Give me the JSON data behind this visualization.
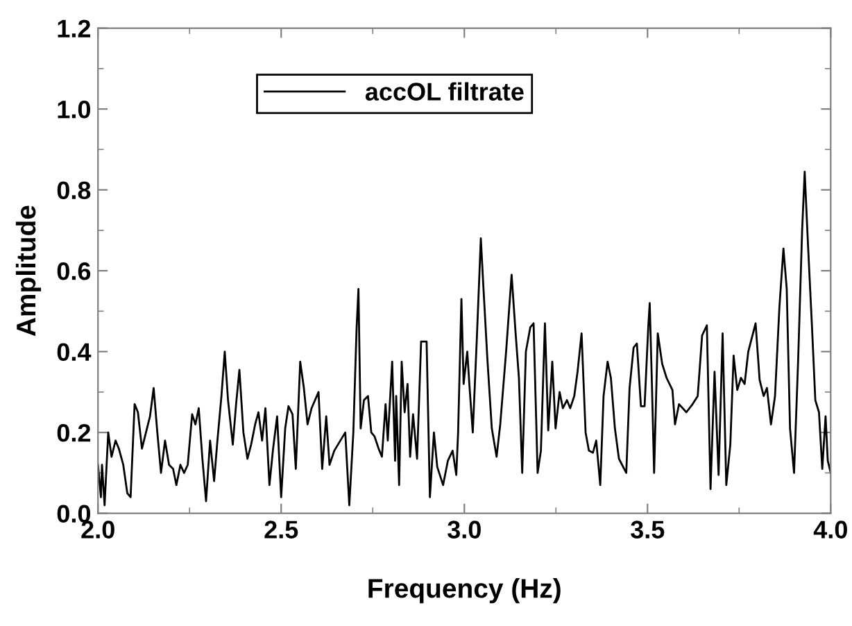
{
  "chart_data": {
    "type": "line",
    "xlabel": "Frequency (Hz)",
    "ylabel": "Amplitude",
    "xlim": [
      2.0,
      4.0
    ],
    "xticks": [
      {
        "value": 2.0,
        "label": "2.0"
      },
      {
        "value": 2.5,
        "label": "2.5"
      },
      {
        "value": 3.0,
        "label": "3.0"
      },
      {
        "value": 3.5,
        "label": "3.5"
      },
      {
        "value": 4.0,
        "label": "4.0"
      }
    ],
    "ylim": [
      0.0,
      1.2
    ],
    "yticks": [
      {
        "value": 0.0,
        "label": "0.0"
      },
      {
        "value": 0.2,
        "label": "0.2"
      },
      {
        "value": 0.4,
        "label": "0.4"
      },
      {
        "value": 0.6,
        "label": "0.6"
      },
      {
        "value": 0.8,
        "label": "0.8"
      },
      {
        "value": 1.0,
        "label": "1.0"
      },
      {
        "value": 1.2,
        "label": "1.2"
      }
    ],
    "grid": false,
    "legend": "top left",
    "marker": "none",
    "line_style": "solid",
    "series": [
      {
        "name": "accOL filtrate",
        "color": "#000000",
        "x": [
          2.0,
          2.008,
          2.011,
          2.018,
          2.028,
          2.037,
          2.048,
          2.057,
          2.069,
          2.08,
          2.089,
          2.1,
          2.109,
          2.12,
          2.131,
          2.142,
          2.152,
          2.162,
          2.172,
          2.183,
          2.194,
          2.205,
          2.214,
          2.225,
          2.235,
          2.245,
          2.257,
          2.266,
          2.275,
          2.285,
          2.295,
          2.306,
          2.317,
          2.326,
          2.337,
          2.346,
          2.355,
          2.368,
          2.377,
          2.386,
          2.397,
          2.408,
          2.418,
          2.429,
          2.438,
          2.448,
          2.457,
          2.468,
          2.478,
          2.489,
          2.5,
          2.511,
          2.52,
          2.531,
          2.54,
          2.552,
          2.562,
          2.572,
          2.583,
          2.602,
          2.612,
          2.623,
          2.632,
          2.645,
          2.675,
          2.686,
          2.697,
          2.706,
          2.711,
          2.717,
          2.726,
          2.737,
          2.746,
          2.755,
          2.766,
          2.775,
          2.785,
          2.791,
          2.803,
          2.811,
          2.814,
          2.822,
          2.829,
          2.837,
          2.845,
          2.852,
          2.86,
          2.871,
          2.882,
          2.897,
          2.906,
          2.917,
          2.926,
          2.942,
          2.955,
          2.968,
          2.978,
          2.983,
          2.992,
          2.998,
          3.008,
          3.014,
          3.023,
          3.034,
          3.045,
          3.052,
          3.063,
          3.075,
          3.088,
          3.098,
          3.114,
          3.129,
          3.14,
          3.149,
          3.158,
          3.168,
          3.18,
          3.189,
          3.2,
          3.209,
          3.22,
          3.229,
          3.24,
          3.249,
          3.26,
          3.269,
          3.28,
          3.289,
          3.3,
          3.309,
          3.32,
          3.331,
          3.34,
          3.351,
          3.36,
          3.371,
          3.38,
          3.391,
          3.4,
          3.411,
          3.422,
          3.442,
          3.451,
          3.462,
          3.471,
          3.482,
          3.492,
          3.502,
          3.506,
          3.512,
          3.518,
          3.528,
          3.54,
          3.552,
          3.568,
          3.575,
          3.586,
          3.606,
          3.623,
          3.637,
          3.649,
          3.662,
          3.672,
          3.683,
          3.694,
          3.705,
          3.715,
          3.726,
          3.735,
          3.745,
          3.755,
          3.765,
          3.775,
          3.795,
          3.806,
          3.817,
          3.826,
          3.837,
          3.848,
          3.86,
          3.871,
          3.88,
          3.889,
          3.9,
          3.911,
          3.922,
          3.929,
          3.938,
          3.949,
          3.958,
          3.968,
          3.977,
          3.986,
          3.992,
          4.0
        ],
        "values": [
          0.12,
          0.04,
          0.12,
          0.02,
          0.2,
          0.14,
          0.18,
          0.16,
          0.12,
          0.05,
          0.04,
          0.27,
          0.25,
          0.16,
          0.2,
          0.24,
          0.31,
          0.2,
          0.1,
          0.18,
          0.12,
          0.11,
          0.07,
          0.12,
          0.1,
          0.12,
          0.245,
          0.22,
          0.26,
          0.135,
          0.03,
          0.18,
          0.08,
          0.18,
          0.29,
          0.4,
          0.28,
          0.17,
          0.27,
          0.355,
          0.2,
          0.135,
          0.17,
          0.22,
          0.25,
          0.18,
          0.26,
          0.07,
          0.16,
          0.24,
          0.04,
          0.21,
          0.265,
          0.245,
          0.11,
          0.375,
          0.31,
          0.22,
          0.26,
          0.3,
          0.11,
          0.24,
          0.12,
          0.155,
          0.2,
          0.02,
          0.2,
          0.46,
          0.555,
          0.21,
          0.28,
          0.29,
          0.2,
          0.19,
          0.16,
          0.14,
          0.27,
          0.18,
          0.375,
          0.13,
          0.29,
          0.07,
          0.375,
          0.25,
          0.32,
          0.14,
          0.245,
          0.135,
          0.425,
          0.425,
          0.04,
          0.2,
          0.115,
          0.07,
          0.13,
          0.155,
          0.095,
          0.2,
          0.53,
          0.32,
          0.4,
          0.315,
          0.2,
          0.43,
          0.68,
          0.56,
          0.38,
          0.21,
          0.14,
          0.22,
          0.4,
          0.59,
          0.445,
          0.335,
          0.1,
          0.4,
          0.46,
          0.47,
          0.1,
          0.155,
          0.47,
          0.205,
          0.375,
          0.21,
          0.3,
          0.26,
          0.28,
          0.26,
          0.29,
          0.35,
          0.445,
          0.2,
          0.155,
          0.15,
          0.18,
          0.07,
          0.29,
          0.375,
          0.335,
          0.21,
          0.135,
          0.1,
          0.31,
          0.41,
          0.42,
          0.265,
          0.265,
          0.46,
          0.52,
          0.32,
          0.1,
          0.445,
          0.37,
          0.335,
          0.305,
          0.22,
          0.27,
          0.25,
          0.27,
          0.29,
          0.44,
          0.465,
          0.06,
          0.35,
          0.095,
          0.445,
          0.07,
          0.17,
          0.39,
          0.305,
          0.335,
          0.32,
          0.4,
          0.47,
          0.33,
          0.29,
          0.31,
          0.22,
          0.29,
          0.51,
          0.655,
          0.555,
          0.21,
          0.1,
          0.375,
          0.7,
          0.845,
          0.665,
          0.46,
          0.28,
          0.25,
          0.11,
          0.24,
          0.13,
          0.1
        ]
      }
    ]
  }
}
